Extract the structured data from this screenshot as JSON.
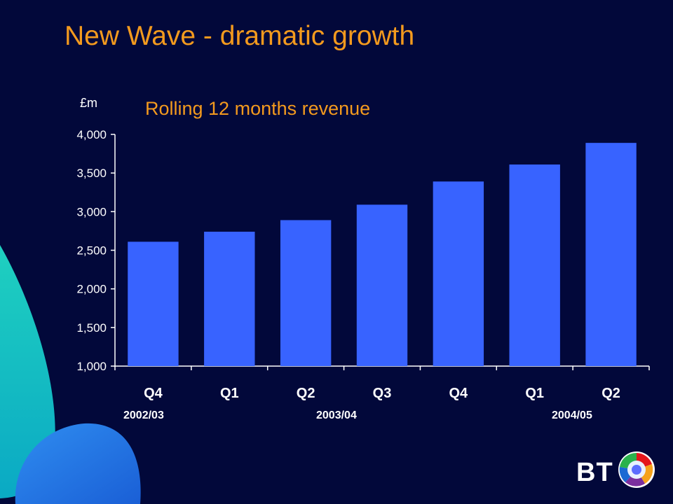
{
  "slide": {
    "title": "New Wave - dramatic growth",
    "subtitle": "Rolling 12 months revenue",
    "unit": "£m",
    "years": [
      "2002/03",
      "2003/04",
      "2004/05"
    ],
    "logo_text": "BT"
  },
  "colors": {
    "background": "#02083a",
    "title": "#f39a1e",
    "bar": "#3863ff",
    "text": "#ffffff"
  },
  "chart_data": {
    "type": "bar",
    "categories": [
      "Q4",
      "Q1",
      "Q2",
      "Q3",
      "Q4",
      "Q1",
      "Q2"
    ],
    "groups": [
      {
        "label": "2002/03",
        "categories": [
          "Q4"
        ]
      },
      {
        "label": "2003/04",
        "categories": [
          "Q1",
          "Q2",
          "Q3",
          "Q4"
        ]
      },
      {
        "label": "2004/05",
        "categories": [
          "Q1",
          "Q2"
        ]
      }
    ],
    "values": [
      2610,
      2740,
      2890,
      3090,
      3390,
      3610,
      3890
    ],
    "title": "Rolling 12 months revenue",
    "ylabel": "£m",
    "ylim": [
      1000,
      4000
    ],
    "yticks": [
      1000,
      1500,
      2000,
      2500,
      3000,
      3500,
      4000
    ],
    "ytick_labels": [
      "1,000",
      "1,500",
      "2,000",
      "2,500",
      "3,000",
      "3,500",
      "4,000"
    ],
    "grid": false,
    "legend": "none"
  }
}
